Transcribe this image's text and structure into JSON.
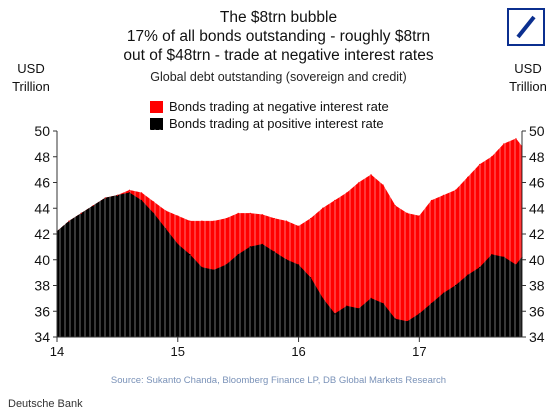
{
  "header": {
    "title_lines": [
      "The $8trn bubble",
      "17% of all bonds outstanding - roughly $8trn",
      "out of $48trn - trade at negative interest rates"
    ],
    "subtitle": "Global debt outstanding (sovereign and credit)",
    "unit_left": [
      "USD",
      "Trillion"
    ],
    "unit_right": [
      "USD",
      "Trillion"
    ],
    "logo_icon": "deutsche-bank-logo-icon"
  },
  "legend": [
    {
      "label": "Bonds trading at negative interest rate",
      "color": "#ff0000"
    },
    {
      "label": "Bonds trading at positive interest rate",
      "color": "#000000"
    }
  ],
  "source": "Source: Sukanto Chanda, Bloomberg Finance LP, DB Global Markets Research",
  "footer": "Deutsche Bank",
  "chart_data": {
    "type": "area",
    "x_ticks": [
      "14",
      "15",
      "16",
      "17"
    ],
    "x_range": [
      2014.0,
      2017.85
    ],
    "ylim": [
      34,
      50
    ],
    "y_ticks": [
      34,
      36,
      38,
      40,
      42,
      44,
      46,
      48,
      50
    ],
    "grid": false,
    "legend_position": "top-left",
    "series": [
      {
        "name": "Bonds trading at positive interest rate",
        "color": "#000000",
        "x": [
          2014.0,
          2014.1,
          2014.2,
          2014.3,
          2014.4,
          2014.5,
          2014.6,
          2014.7,
          2014.8,
          2014.9,
          2015.0,
          2015.1,
          2015.2,
          2015.3,
          2015.4,
          2015.5,
          2015.6,
          2015.7,
          2015.8,
          2015.9,
          2016.0,
          2016.1,
          2016.2,
          2016.3,
          2016.4,
          2016.5,
          2016.6,
          2016.7,
          2016.8,
          2016.9,
          2017.0,
          2017.1,
          2017.2,
          2017.3,
          2017.4,
          2017.5,
          2017.6,
          2017.7,
          2017.8,
          2017.85
        ],
        "values": [
          42.2,
          43.0,
          43.6,
          44.2,
          44.8,
          45.0,
          45.2,
          44.6,
          43.6,
          42.4,
          41.2,
          40.4,
          39.4,
          39.2,
          39.6,
          40.4,
          41.0,
          41.2,
          40.6,
          40.0,
          39.6,
          38.6,
          37.0,
          35.8,
          36.4,
          36.2,
          37.0,
          36.6,
          35.4,
          35.2,
          35.8,
          36.6,
          37.4,
          38.0,
          38.8,
          39.4,
          40.4,
          40.2,
          39.6,
          40.2
        ]
      },
      {
        "name": "Bonds trading at negative interest rate",
        "color": "#ff0000",
        "x": [
          2014.0,
          2014.1,
          2014.2,
          2014.3,
          2014.4,
          2014.5,
          2014.6,
          2014.7,
          2014.8,
          2014.9,
          2015.0,
          2015.1,
          2015.2,
          2015.3,
          2015.4,
          2015.5,
          2015.6,
          2015.7,
          2015.8,
          2015.9,
          2016.0,
          2016.1,
          2016.2,
          2016.3,
          2016.4,
          2016.5,
          2016.6,
          2016.7,
          2016.8,
          2016.9,
          2017.0,
          2017.1,
          2017.2,
          2017.3,
          2017.4,
          2017.5,
          2017.6,
          2017.7,
          2017.8,
          2017.85
        ],
        "values": [
          0.0,
          0.0,
          0.0,
          0.0,
          0.0,
          0.0,
          0.2,
          0.6,
          0.9,
          1.4,
          2.2,
          2.6,
          3.6,
          3.8,
          3.6,
          3.2,
          2.6,
          2.3,
          2.6,
          3.0,
          3.0,
          4.6,
          7.0,
          8.8,
          8.8,
          9.8,
          9.6,
          9.2,
          8.8,
          8.4,
          7.6,
          8.0,
          7.6,
          7.4,
          7.6,
          8.0,
          7.6,
          8.8,
          9.8,
          8.6
        ]
      }
    ],
    "total_series_note": "stacked"
  }
}
